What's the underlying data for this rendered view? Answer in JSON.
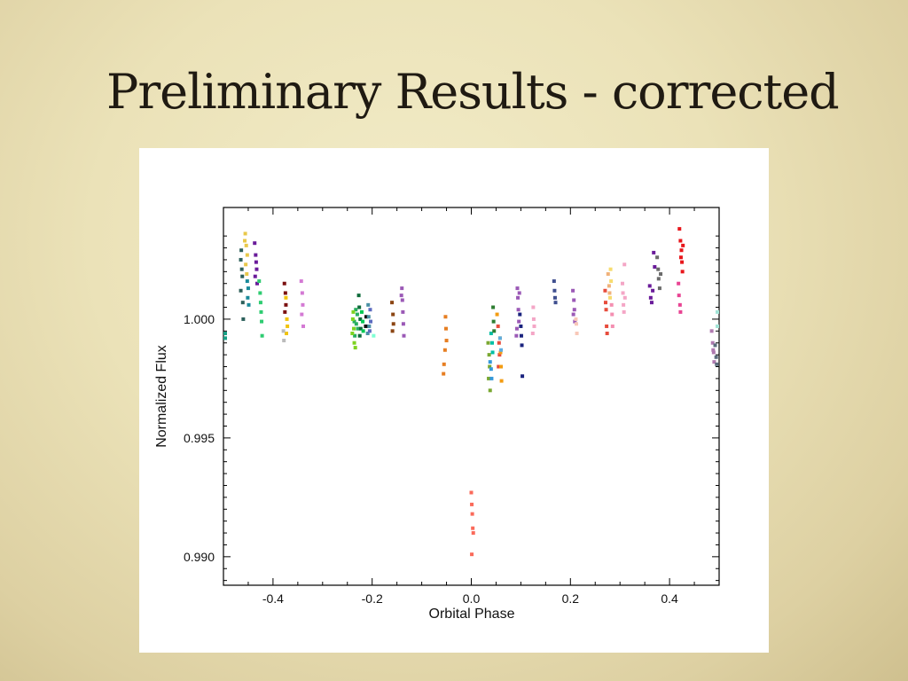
{
  "slide": {
    "title": "Preliminary Results - corrected"
  },
  "chart_data": {
    "type": "scatter",
    "title": "",
    "xlabel": "Orbital Phase",
    "ylabel": "Normalized Flux",
    "xlim": [
      -0.5,
      0.5
    ],
    "ylim": [
      0.9888,
      1.0047
    ],
    "x_ticks": [
      -0.4,
      -0.2,
      0.0,
      0.2,
      0.4
    ],
    "x_tick_labels": [
      "-0.4",
      "-0.2",
      "0.0",
      "0.2",
      "0.4"
    ],
    "y_ticks": [
      0.99,
      0.995,
      1.0
    ],
    "y_tick_labels": [
      "0.990",
      "0.995",
      "1.000"
    ],
    "grid": false,
    "legend": "none",
    "series": [
      {
        "color": "#16a085",
        "points": [
          [
            -0.498,
            0.9994
          ],
          [
            -0.499,
            0.9992
          ]
        ]
      },
      {
        "color": "#2c5f5a",
        "points": [
          [
            -0.465,
            1.0025
          ],
          [
            -0.463,
            1.0021
          ],
          [
            -0.462,
            1.0018
          ],
          [
            -0.465,
            1.0012
          ],
          [
            -0.461,
            1.0007
          ],
          [
            -0.46,
            1.0
          ],
          [
            -0.464,
            1.0029
          ]
        ]
      },
      {
        "color": "#e8c84a",
        "points": [
          [
            -0.456,
            1.0036
          ],
          [
            -0.454,
            1.0031
          ],
          [
            -0.452,
            1.0027
          ],
          [
            -0.455,
            1.0023
          ],
          [
            -0.453,
            1.0019
          ],
          [
            -0.457,
            1.0033
          ]
        ]
      },
      {
        "color": "#1a8a9a",
        "points": [
          [
            -0.452,
            1.0016
          ],
          [
            -0.45,
            1.0013
          ],
          [
            -0.451,
            1.0009
          ],
          [
            -0.449,
            1.0006
          ]
        ]
      },
      {
        "color": "#6a1b9a",
        "points": [
          [
            -0.437,
            1.0032
          ],
          [
            -0.435,
            1.0027
          ],
          [
            -0.434,
            1.0024
          ],
          [
            -0.433,
            1.0021
          ],
          [
            -0.436,
            1.0018
          ],
          [
            -0.432,
            1.0015
          ]
        ]
      },
      {
        "color": "#2ecc71",
        "points": [
          [
            -0.428,
            1.0016
          ],
          [
            -0.426,
            1.0011
          ],
          [
            -0.425,
            1.0007
          ],
          [
            -0.424,
            1.0003
          ],
          [
            -0.423,
            0.9999
          ],
          [
            -0.422,
            0.9993
          ]
        ]
      },
      {
        "color": "#7b1010",
        "points": [
          [
            -0.377,
            1.0015
          ],
          [
            -0.375,
            1.0011
          ],
          [
            -0.374,
            1.0006
          ],
          [
            -0.376,
            1.0003
          ]
        ]
      },
      {
        "color": "#f1c40f",
        "points": [
          [
            -0.374,
            1.0009
          ],
          [
            -0.372,
            1.0
          ],
          [
            -0.371,
            0.9997
          ],
          [
            -0.373,
            0.9994
          ]
        ]
      },
      {
        "color": "#bbbbbb",
        "points": [
          [
            -0.379,
            0.9995
          ],
          [
            -0.378,
            0.9991
          ]
        ]
      },
      {
        "color": "#d47ad4",
        "points": [
          [
            -0.343,
            1.0016
          ],
          [
            -0.341,
            1.0011
          ],
          [
            -0.34,
            1.0006
          ],
          [
            -0.342,
            1.0002
          ],
          [
            -0.339,
            0.9997
          ]
        ]
      },
      {
        "color": "#27ae60",
        "points": [
          [
            -0.232,
            0.9998
          ],
          [
            -0.23,
            1.0002
          ],
          [
            -0.229,
            0.9996
          ],
          [
            -0.235,
            0.9993
          ],
          [
            -0.233,
            1.0004
          ],
          [
            -0.236,
            0.9999
          ]
        ]
      },
      {
        "color": "#7ed321",
        "points": [
          [
            -0.238,
            1.0003
          ],
          [
            -0.237,
            0.9996
          ],
          [
            -0.236,
            0.999
          ],
          [
            -0.239,
            1.0
          ],
          [
            -0.234,
            0.9988
          ],
          [
            -0.24,
            0.9994
          ]
        ]
      },
      {
        "color": "#0e6b3a",
        "points": [
          [
            -0.226,
            1.0005
          ],
          [
            -0.224,
            1.0
          ],
          [
            -0.223,
            0.9996
          ],
          [
            -0.225,
            0.9993
          ],
          [
            -0.227,
            1.001
          ]
        ]
      },
      {
        "color": "#00c853",
        "points": [
          [
            -0.221,
            1.0003
          ],
          [
            -0.219,
            0.9999
          ],
          [
            -0.218,
            0.9995
          ]
        ]
      },
      {
        "color": "#111111",
        "points": [
          [
            -0.212,
            1.0001
          ],
          [
            -0.213,
            0.9997
          ]
        ]
      },
      {
        "color": "#4a90a4",
        "points": [
          [
            -0.208,
            1.0006
          ],
          [
            -0.207,
            1.0001
          ],
          [
            -0.206,
            0.9997
          ],
          [
            -0.209,
            0.9994
          ]
        ]
      },
      {
        "color": "#5c6bc0",
        "points": [
          [
            -0.204,
            1.0004
          ],
          [
            -0.203,
            0.9999
          ],
          [
            -0.205,
            0.9995
          ]
        ]
      },
      {
        "color": "#7fffd4",
        "points": [
          [
            -0.197,
            0.9993
          ]
        ]
      },
      {
        "color": "#8b4513",
        "points": [
          [
            -0.16,
            1.0007
          ],
          [
            -0.158,
            1.0002
          ],
          [
            -0.157,
            0.9998
          ],
          [
            -0.159,
            0.9995
          ]
        ]
      },
      {
        "color": "#9b59b6",
        "points": [
          [
            -0.14,
            1.0013
          ],
          [
            -0.139,
            1.0008
          ],
          [
            -0.138,
            1.0003
          ],
          [
            -0.137,
            0.9998
          ],
          [
            -0.136,
            0.9993
          ],
          [
            -0.141,
            1.001
          ]
        ]
      },
      {
        "color": "#e67e22",
        "points": [
          [
            -0.052,
            1.0001
          ],
          [
            -0.051,
            0.9996
          ],
          [
            -0.05,
            0.9991
          ],
          [
            -0.053,
            0.9987
          ],
          [
            -0.055,
            0.9981
          ],
          [
            -0.056,
            0.9977
          ]
        ]
      },
      {
        "color": "#fa6a5a",
        "points": [
          [
            0.0,
            0.9927
          ],
          [
            0.001,
            0.9922
          ],
          [
            0.002,
            0.9918
          ],
          [
            0.003,
            0.9912
          ],
          [
            0.004,
            0.991
          ],
          [
            0.001,
            0.9901
          ]
        ]
      },
      {
        "color": "#7aa832",
        "points": [
          [
            0.034,
            0.999
          ],
          [
            0.036,
            0.9985
          ],
          [
            0.037,
            0.998
          ],
          [
            0.035,
            0.9975
          ],
          [
            0.038,
            0.997
          ]
        ]
      },
      {
        "color": "#3498db",
        "points": [
          [
            0.038,
            0.9982
          ],
          [
            0.04,
            0.9979
          ],
          [
            0.041,
            0.9975
          ]
        ]
      },
      {
        "color": "#00bfa5",
        "points": [
          [
            0.04,
            0.9994
          ],
          [
            0.042,
            0.999
          ],
          [
            0.043,
            0.9986
          ]
        ]
      },
      {
        "color": "#2e7d32",
        "points": [
          [
            0.044,
            1.0005
          ],
          [
            0.045,
            0.9999
          ],
          [
            0.046,
            0.9995
          ]
        ]
      },
      {
        "color": "#e74c3c",
        "points": [
          [
            0.054,
            0.9997
          ],
          [
            0.056,
            0.999
          ],
          [
            0.057,
            0.9985
          ],
          [
            0.055,
            0.998
          ]
        ]
      },
      {
        "color": "#f39c12",
        "points": [
          [
            0.052,
            1.0002
          ],
          [
            0.058,
            0.9992
          ],
          [
            0.059,
            0.9986
          ],
          [
            0.06,
            0.998
          ],
          [
            0.061,
            0.9974
          ]
        ]
      },
      {
        "color": "#5dade2",
        "points": [
          [
            0.058,
            0.9992
          ],
          [
            0.06,
            0.9987
          ]
        ]
      },
      {
        "color": "#9b59b6",
        "points": [
          [
            0.093,
            1.0013
          ],
          [
            0.094,
            1.0009
          ],
          [
            0.095,
            1.0004
          ],
          [
            0.096,
            0.9999
          ],
          [
            0.092,
            0.9996
          ],
          [
            0.091,
            0.9993
          ],
          [
            0.097,
            1.0011
          ]
        ]
      },
      {
        "color": "#1a237e",
        "points": [
          [
            0.098,
            1.0002
          ],
          [
            0.1,
            0.9997
          ],
          [
            0.101,
            0.9993
          ],
          [
            0.102,
            0.9989
          ],
          [
            0.103,
            0.9976
          ]
        ]
      },
      {
        "color": "#f4a6c6",
        "points": [
          [
            0.125,
            1.0005
          ],
          [
            0.126,
            1.0
          ],
          [
            0.127,
            0.9997
          ],
          [
            0.124,
            0.9994
          ]
        ]
      },
      {
        "color": "#3f4f8f",
        "points": [
          [
            0.167,
            1.0016
          ],
          [
            0.168,
            1.0012
          ],
          [
            0.169,
            1.0009
          ],
          [
            0.17,
            1.0007
          ]
        ]
      },
      {
        "color": "#9b59b6",
        "points": [
          [
            0.205,
            1.0012
          ],
          [
            0.207,
            1.0008
          ],
          [
            0.208,
            1.0004
          ],
          [
            0.209,
            0.9999
          ],
          [
            0.206,
            1.0002
          ]
        ]
      },
      {
        "color": "#f8c8b8",
        "points": [
          [
            0.212,
            0.9998
          ],
          [
            0.213,
            0.9994
          ],
          [
            0.211,
            1.0
          ]
        ]
      },
      {
        "color": "#e74c3c",
        "points": [
          [
            0.27,
            1.0012
          ],
          [
            0.271,
            1.0007
          ],
          [
            0.272,
            1.0004
          ],
          [
            0.273,
            0.9997
          ],
          [
            0.274,
            0.9994
          ]
        ]
      },
      {
        "color": "#f0b27a",
        "points": [
          [
            0.276,
            1.0019
          ],
          [
            0.278,
            1.0014
          ],
          [
            0.279,
            1.0011
          ]
        ]
      },
      {
        "color": "#f7dc6f",
        "points": [
          [
            0.281,
            1.0021
          ],
          [
            0.282,
            1.0016
          ],
          [
            0.28,
            1.0009
          ]
        ]
      },
      {
        "color": "#f48fb1",
        "points": [
          [
            0.283,
            1.0006
          ],
          [
            0.284,
            1.0002
          ],
          [
            0.285,
            0.9997
          ]
        ]
      },
      {
        "color": "#f4a6c6",
        "points": [
          [
            0.305,
            1.0015
          ],
          [
            0.306,
            1.0011
          ],
          [
            0.307,
            1.0006
          ],
          [
            0.308,
            1.0003
          ],
          [
            0.309,
            1.0023
          ],
          [
            0.31,
            1.0009
          ]
        ]
      },
      {
        "color": "#6a1b9a",
        "points": [
          [
            0.36,
            1.0014
          ],
          [
            0.362,
            1.0009
          ],
          [
            0.364,
            1.0007
          ],
          [
            0.366,
            1.0012
          ],
          [
            0.368,
            1.0028
          ],
          [
            0.37,
            1.0022
          ]
        ]
      },
      {
        "color": "#6b6b6b",
        "points": [
          [
            0.375,
            1.0026
          ],
          [
            0.377,
            1.0021
          ],
          [
            0.378,
            1.0017
          ],
          [
            0.38,
            1.0013
          ],
          [
            0.382,
            1.0019
          ]
        ]
      },
      {
        "color": "#e8161b",
        "points": [
          [
            0.42,
            1.0038
          ],
          [
            0.422,
            1.0033
          ],
          [
            0.424,
            1.0029
          ],
          [
            0.425,
            1.0024
          ],
          [
            0.426,
            1.002
          ],
          [
            0.423,
            1.0026
          ],
          [
            0.427,
            1.0031
          ]
        ]
      },
      {
        "color": "#e84393",
        "points": [
          [
            0.418,
            1.0015
          ],
          [
            0.419,
            1.001
          ],
          [
            0.421,
            1.0006
          ],
          [
            0.422,
            1.0003
          ]
        ]
      },
      {
        "color": "#b07ab0",
        "points": [
          [
            0.485,
            0.9995
          ],
          [
            0.487,
            0.999
          ],
          [
            0.489,
            0.9986
          ],
          [
            0.49,
            0.9982
          ],
          [
            0.488,
            0.9987
          ]
        ]
      },
      {
        "color": "#5d6d7e",
        "points": [
          [
            0.492,
            0.9989
          ],
          [
            0.494,
            0.9984
          ],
          [
            0.495,
            0.9981
          ]
        ]
      },
      {
        "color": "#a3e4d7",
        "points": [
          [
            0.497,
            1.0003
          ],
          [
            0.498,
            0.9997
          ]
        ]
      }
    ]
  }
}
